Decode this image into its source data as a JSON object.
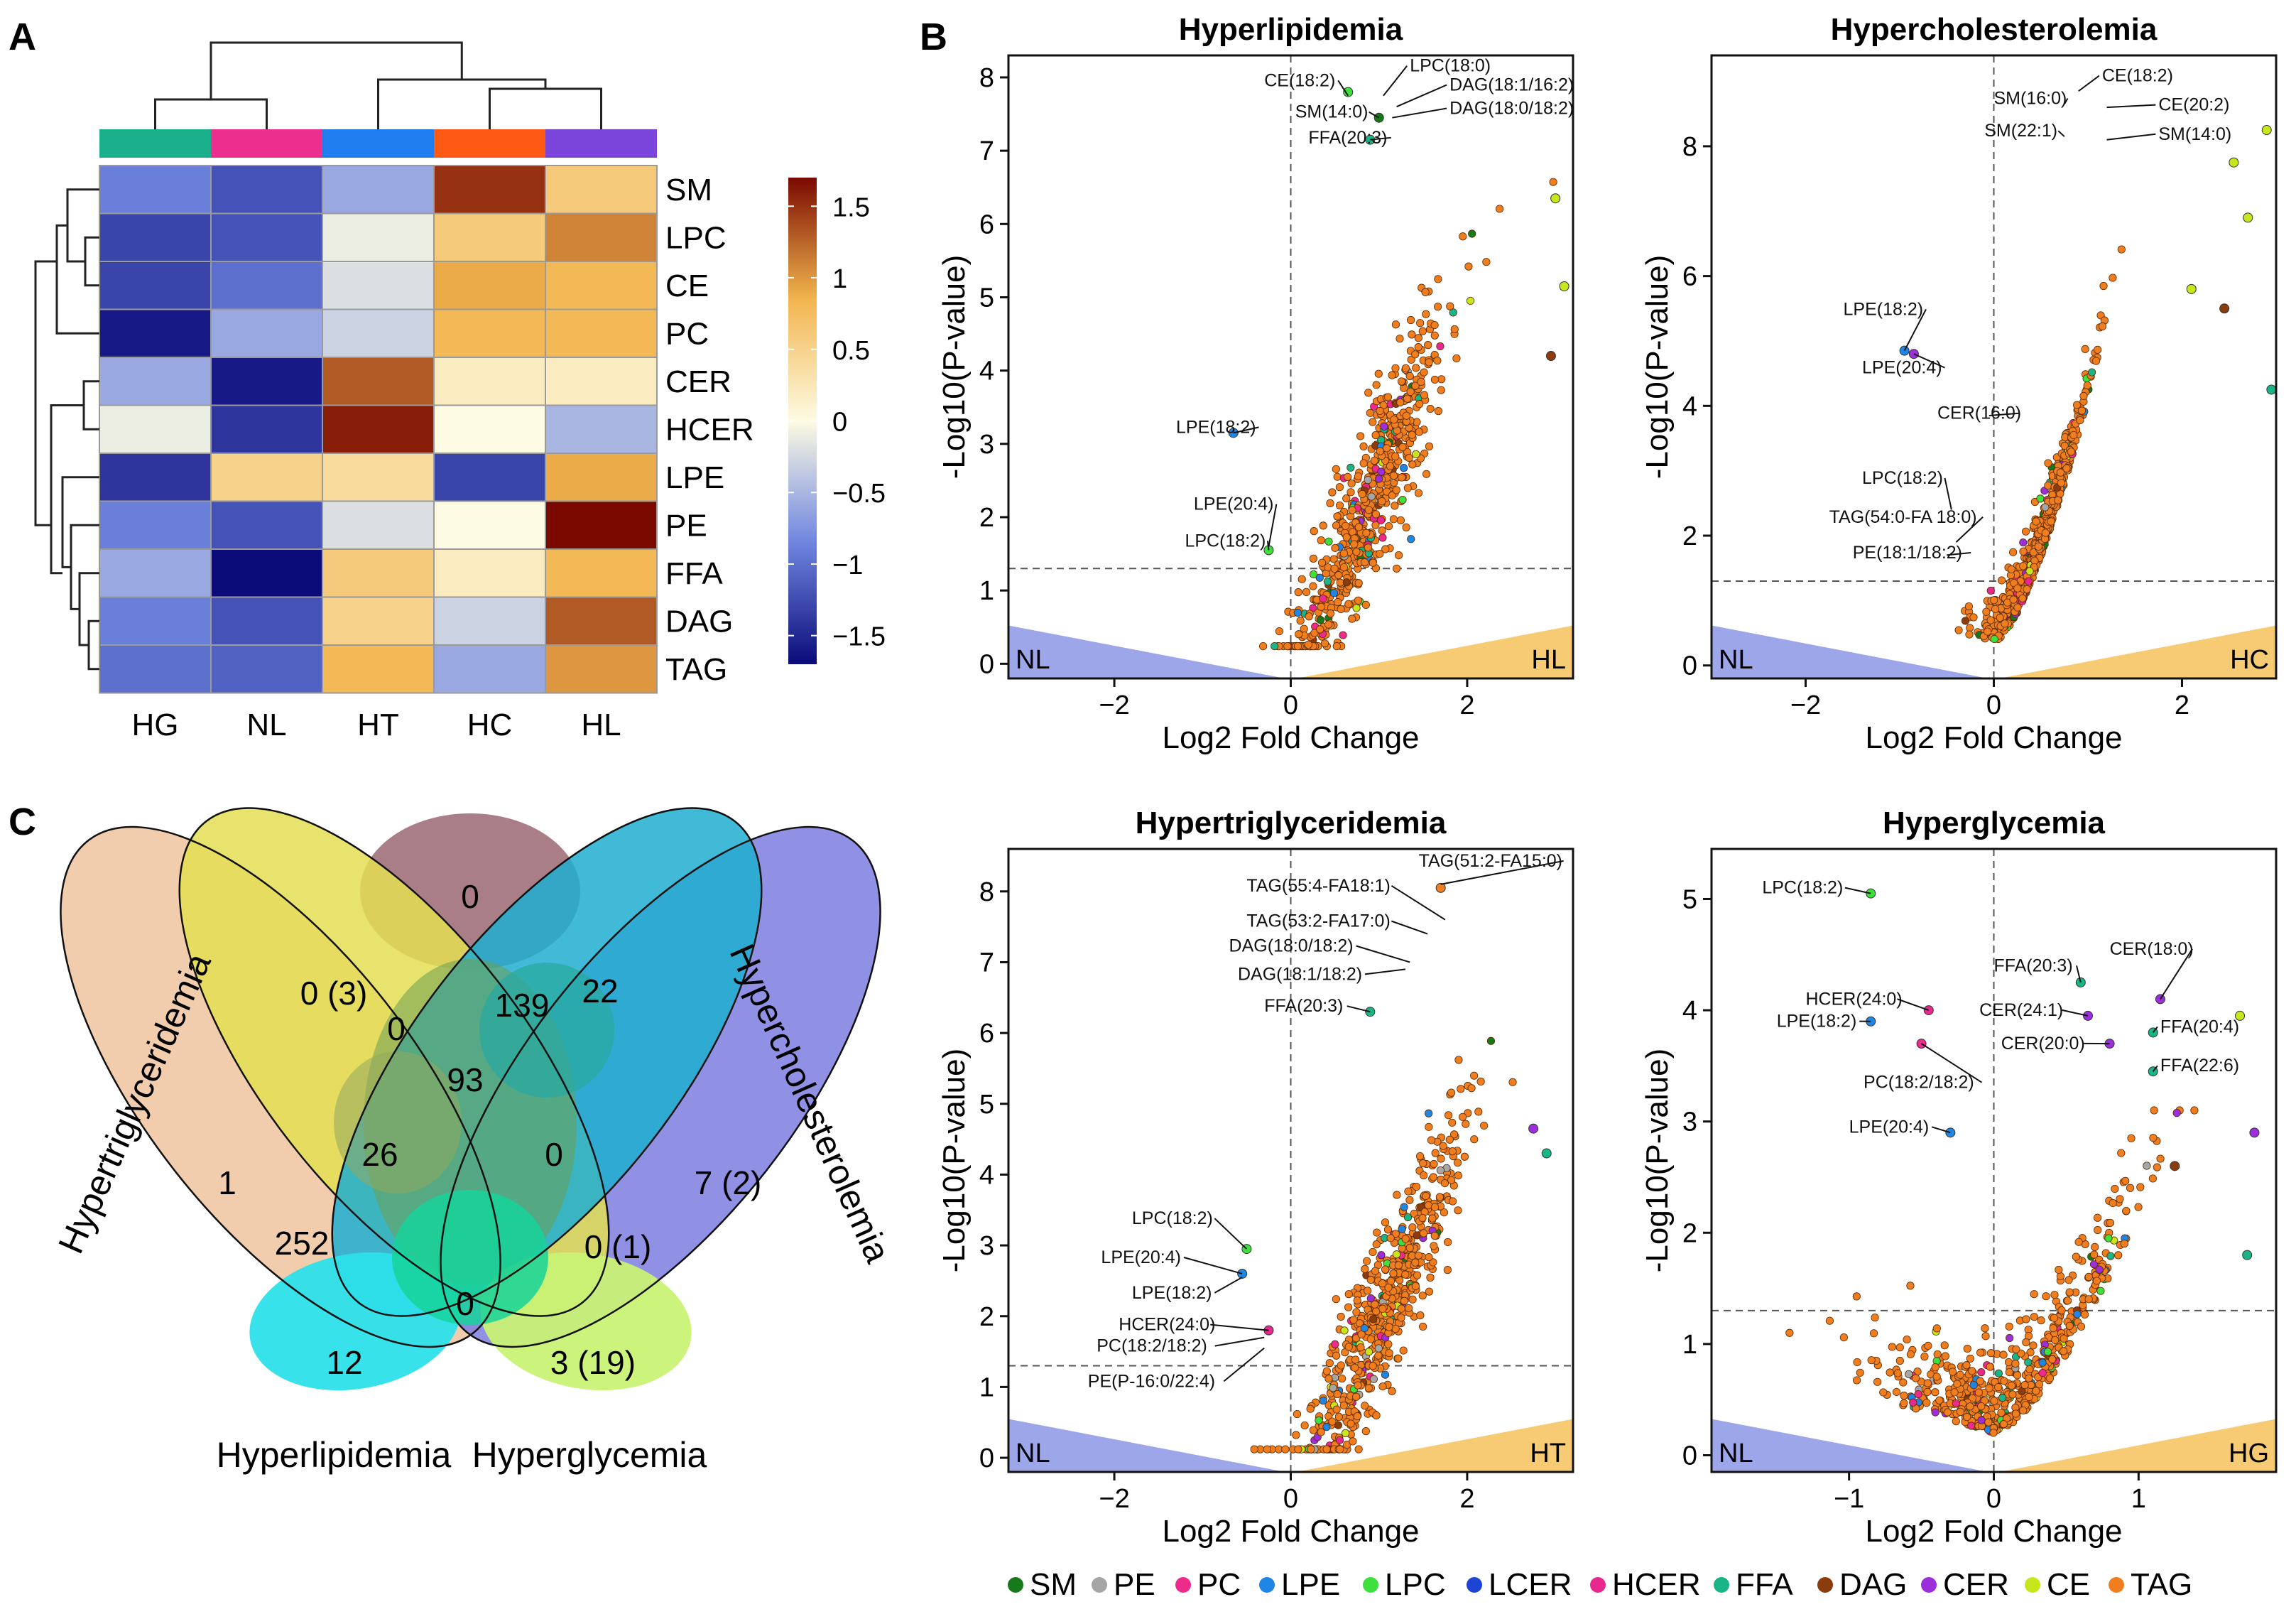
{
  "panel_letters": [
    "A",
    "B",
    "C"
  ],
  "chart_data": [
    {
      "type": "heatmap",
      "id": "heatmap",
      "columns": [
        "HG",
        "NL",
        "HT",
        "HC",
        "HL"
      ],
      "rows": [
        "SM",
        "LPC",
        "CE",
        "PC",
        "CER",
        "HCER",
        "LPE",
        "PE",
        "FFA",
        "DAG",
        "TAG"
      ],
      "values": [
        [
          -0.9,
          -1.2,
          -0.6,
          1.5,
          0.6
        ],
        [
          -1.3,
          -1.2,
          -0.1,
          0.6,
          1.1
        ],
        [
          -1.3,
          -1.0,
          -0.2,
          0.9,
          0.8
        ],
        [
          -1.6,
          -0.6,
          -0.3,
          0.8,
          0.8
        ],
        [
          -0.6,
          -1.6,
          1.3,
          0.2,
          0.2
        ],
        [
          -0.1,
          -1.4,
          1.6,
          0.0,
          -0.5
        ],
        [
          -1.4,
          0.5,
          0.4,
          -1.3,
          0.9
        ],
        [
          -0.9,
          -1.2,
          -0.2,
          0.0,
          1.7
        ],
        [
          -0.6,
          -1.7,
          0.6,
          0.2,
          0.8
        ],
        [
          -0.9,
          -1.2,
          0.5,
          -0.3,
          1.3
        ],
        [
          -1.0,
          -1.1,
          0.8,
          -0.6,
          1.0
        ]
      ],
      "column_group_colors": [
        "#1bb08c",
        "#ec2f8f",
        "#1f7df0",
        "#ff5a14",
        "#7b45dc"
      ],
      "colorbar_ticks": [
        "1.5",
        "1",
        "0.5",
        "0",
        "−0.5",
        "−1",
        "−1.5"
      ],
      "colorbar_values": [
        1.5,
        1,
        0.5,
        0,
        -0.5,
        -1,
        -1.5
      ],
      "color_scale": {
        "low": "#0b0b7a",
        "mid": "#fdfbe3",
        "high": "#7a0a00"
      }
    },
    {
      "type": "scatter",
      "id": "volcano-hl",
      "title": "Hyperlipidemia",
      "xlabel": "Log2 Fold Change",
      "ylabel": "-Log10(P-value)",
      "xlim": [
        -3.2,
        3.2
      ],
      "ylim": [
        -0.2,
        8.3
      ],
      "xticks": [
        -2,
        0,
        2
      ],
      "yticks": [
        0,
        1,
        2,
        3,
        4,
        5,
        6,
        7,
        8
      ],
      "threshold_y": 1.3,
      "left_group": "NL",
      "right_group": "HL",
      "cloud": {
        "x_center": 0.9,
        "x_spread": 0.45,
        "slope": 3.5,
        "intercept": 0.4,
        "y_max": 8.0,
        "n": 620,
        "seed": 11
      },
      "extra_points": [
        {
          "x": -0.65,
          "y": 3.15,
          "cls": "LPE"
        },
        {
          "x": -0.25,
          "y": 1.55,
          "cls": "LPC"
        },
        {
          "x": 3.0,
          "y": 6.35,
          "cls": "CE"
        },
        {
          "x": 3.1,
          "y": 5.15,
          "cls": "CE"
        },
        {
          "x": 2.95,
          "y": 4.2,
          "cls": "DAG"
        },
        {
          "x": 0.65,
          "y": 7.8,
          "cls": "LPC"
        },
        {
          "x": 1.0,
          "y": 7.45,
          "cls": "SM"
        },
        {
          "x": 0.9,
          "y": 7.15,
          "cls": "FFA"
        }
      ],
      "annotations": [
        {
          "text": "CE(18:2)",
          "x": -0.3,
          "y": 7.88,
          "px": 0.65,
          "py": 7.75
        },
        {
          "text": "LPC(18:0)",
          "x": 1.35,
          "y": 8.08,
          "px": 1.05,
          "py": 7.75
        },
        {
          "text": "DAG(18:1/16:2)",
          "x": 1.8,
          "y": 7.82,
          "px": 1.2,
          "py": 7.6
        },
        {
          "text": "SM(14:0)",
          "x": 0.05,
          "y": 7.45,
          "px": 1.0,
          "py": 7.45
        },
        {
          "text": "DAG(18:0/18:2)",
          "x": 1.8,
          "y": 7.5,
          "px": 1.15,
          "py": 7.45
        },
        {
          "text": "FFA(20:3)",
          "x": 0.2,
          "y": 7.1,
          "px": 0.9,
          "py": 7.15
        },
        {
          "text": "LPE(18:2)",
          "x": -1.3,
          "y": 3.15,
          "px": -0.65,
          "py": 3.15
        },
        {
          "text": "LPE(20:4)",
          "x": -1.1,
          "y": 2.1,
          "px": -0.25,
          "py": 1.6
        },
        {
          "text": "LPC(18:2)",
          "x": -1.2,
          "y": 1.6,
          "px": -0.25,
          "py": 1.55
        }
      ]
    },
    {
      "type": "scatter",
      "id": "volcano-hc",
      "title": "Hypercholesterolemia",
      "xlabel": "Log2 Fold Change",
      "ylabel": "-Log10(P-value)",
      "xlim": [
        -3.0,
        3.0
      ],
      "ylim": [
        -0.2,
        9.4
      ],
      "xticks": [
        -2,
        0,
        2
      ],
      "yticks": [
        0,
        2,
        4,
        6,
        8
      ],
      "threshold_y": 1.3,
      "left_group": "NL",
      "right_group": "HC",
      "cloud": {
        "x_center": 0.45,
        "x_spread": 0.28,
        "slope": 4.2,
        "intercept": 0.35,
        "y_max": 9.0,
        "n": 620,
        "seed": 23,
        "curve": true
      },
      "extra_points": [
        {
          "x": -0.95,
          "y": 4.85,
          "cls": "LPE"
        },
        {
          "x": -0.85,
          "y": 4.8,
          "cls": "CER"
        },
        {
          "x": 2.9,
          "y": 8.25,
          "cls": "CE"
        },
        {
          "x": 2.55,
          "y": 7.75,
          "cls": "CE"
        },
        {
          "x": 2.7,
          "y": 6.9,
          "cls": "CE"
        },
        {
          "x": 2.45,
          "y": 5.5,
          "cls": "DAG"
        },
        {
          "x": 2.95,
          "y": 4.25,
          "cls": "FFA"
        },
        {
          "x": 2.1,
          "y": 5.8,
          "cls": "CE"
        }
      ],
      "annotations": [
        {
          "text": "CE(18:2)",
          "x": 1.15,
          "y": 9.0,
          "px": 0.9,
          "py": 8.85
        },
        {
          "text": "SM(16:0)",
          "x": 0.0,
          "y": 8.65,
          "px": 0.75,
          "py": 8.65
        },
        {
          "text": "CE(20:2)",
          "x": 1.75,
          "y": 8.55,
          "px": 1.2,
          "py": 8.6
        },
        {
          "text": "SM(22:1)",
          "x": -0.1,
          "y": 8.15,
          "px": 0.75,
          "py": 8.15
        },
        {
          "text": "SM(14:0)",
          "x": 1.75,
          "y": 8.1,
          "px": 1.2,
          "py": 8.1
        },
        {
          "text": "LPE(18:2)",
          "x": -1.6,
          "y": 5.4,
          "px": -0.95,
          "py": 4.85
        },
        {
          "text": "LPE(20:4)",
          "x": -1.4,
          "y": 4.5,
          "px": -0.85,
          "py": 4.8
        },
        {
          "text": "CER(16:0)",
          "x": -0.6,
          "y": 3.8,
          "px": -0.05,
          "py": 3.85
        },
        {
          "text": "LPC(18:2)",
          "x": -1.4,
          "y": 2.8,
          "px": -0.45,
          "py": 2.4
        },
        {
          "text": "TAG(54:0-FA 18:0)",
          "x": -1.75,
          "y": 2.2,
          "px": -0.4,
          "py": 1.9
        },
        {
          "text": "PE(18:1/18:2)",
          "x": -1.5,
          "y": 1.65,
          "px": -0.5,
          "py": 1.7
        }
      ]
    },
    {
      "type": "scatter",
      "id": "volcano-ht",
      "title": "Hypertriglyceridemia",
      "xlabel": "Log2 Fold Change",
      "ylabel": "-Log10(P-value)",
      "xlim": [
        -3.2,
        3.2
      ],
      "ylim": [
        -0.2,
        8.6
      ],
      "xticks": [
        -2,
        0,
        2
      ],
      "yticks": [
        0,
        1,
        2,
        3,
        4,
        5,
        6,
        7,
        8
      ],
      "threshold_y": 1.3,
      "left_group": "NL",
      "right_group": "HT",
      "cloud": {
        "x_center": 1.05,
        "x_spread": 0.45,
        "slope": 3.6,
        "intercept": 0.2,
        "y_max": 8.2,
        "n": 620,
        "seed": 37
      },
      "extra_points": [
        {
          "x": -0.5,
          "y": 2.95,
          "cls": "LPC"
        },
        {
          "x": -0.55,
          "y": 2.6,
          "cls": "LPE"
        },
        {
          "x": -0.25,
          "y": 1.8,
          "cls": "HCER"
        },
        {
          "x": 2.75,
          "y": 4.65,
          "cls": "CER"
        },
        {
          "x": 2.9,
          "y": 4.3,
          "cls": "FFA"
        },
        {
          "x": 1.7,
          "y": 8.05,
          "cls": "TAG"
        },
        {
          "x": 0.9,
          "y": 6.3,
          "cls": "FFA"
        }
      ],
      "annotations": [
        {
          "text": "TAG(51:2-FA15:0)",
          "x": 1.45,
          "y": 8.35,
          "px": 1.7,
          "py": 8.1
        },
        {
          "text": "TAG(55:4-FA18:1)",
          "x": -0.5,
          "y": 8.0,
          "px": 1.75,
          "py": 7.6
        },
        {
          "text": "TAG(53:2-FA17:0)",
          "x": -0.5,
          "y": 7.5,
          "px": 1.55,
          "py": 7.4
        },
        {
          "text": "DAG(18:0/18:2)",
          "x": -0.7,
          "y": 7.15,
          "px": 1.35,
          "py": 7.0
        },
        {
          "text": "DAG(18:1/18:2)",
          "x": -0.6,
          "y": 6.75,
          "px": 1.3,
          "py": 6.9
        },
        {
          "text": "FFA(20:3)",
          "x": -0.3,
          "y": 6.3,
          "px": 0.9,
          "py": 6.3
        },
        {
          "text": "LPC(18:2)",
          "x": -1.8,
          "y": 3.3,
          "px": -0.5,
          "py": 2.95
        },
        {
          "text": "LPE(20:4)",
          "x": -2.15,
          "y": 2.75,
          "px": -0.55,
          "py": 2.6
        },
        {
          "text": "LPE(18:2)",
          "x": -1.8,
          "y": 2.25,
          "px": -0.55,
          "py": 2.55
        },
        {
          "text": "HCER(24:0)",
          "x": -1.95,
          "y": 1.8,
          "px": -0.25,
          "py": 1.8
        },
        {
          "text": "PC(18:2/18:2)",
          "x": -2.2,
          "y": 1.5,
          "px": -0.3,
          "py": 1.7
        },
        {
          "text": "PE(P-16:0/22:4)",
          "x": -2.3,
          "y": 1.0,
          "px": -0.3,
          "py": 1.55
        }
      ]
    },
    {
      "type": "scatter",
      "id": "volcano-hg",
      "title": "Hyperglycemia",
      "xlabel": "Log2 Fold Change",
      "ylabel": "-Log10(P-value)",
      "xlim": [
        -1.95,
        1.95
      ],
      "ylim": [
        -0.15,
        5.45
      ],
      "xticks": [
        -1,
        0,
        1
      ],
      "yticks": [
        0,
        1,
        2,
        3,
        4,
        5
      ],
      "threshold_y": 1.3,
      "left_group": "NL",
      "right_group": "HG",
      "cloud": {
        "x_center": 0.15,
        "x_spread": 0.45,
        "slope": 2.2,
        "intercept": 0.2,
        "y_max": 3.1,
        "n": 560,
        "seed": 53,
        "curve": true
      },
      "extra_points": [
        {
          "x": -0.85,
          "y": 5.05,
          "cls": "LPC"
        },
        {
          "x": -0.45,
          "y": 4.0,
          "cls": "HCER"
        },
        {
          "x": -0.85,
          "y": 3.9,
          "cls": "LPE"
        },
        {
          "x": -0.5,
          "y": 3.7,
          "cls": "PC"
        },
        {
          "x": -0.3,
          "y": 2.9,
          "cls": "LPE"
        },
        {
          "x": 0.6,
          "y": 4.25,
          "cls": "FFA"
        },
        {
          "x": 0.65,
          "y": 3.95,
          "cls": "CER"
        },
        {
          "x": 0.8,
          "y": 3.7,
          "cls": "CER"
        },
        {
          "x": 1.15,
          "y": 4.1,
          "cls": "CER"
        },
        {
          "x": 1.1,
          "y": 3.8,
          "cls": "FFA"
        },
        {
          "x": 1.1,
          "y": 3.45,
          "cls": "FFA"
        },
        {
          "x": 1.7,
          "y": 3.95,
          "cls": "CE"
        },
        {
          "x": 1.8,
          "y": 2.9,
          "cls": "CER"
        },
        {
          "x": 1.75,
          "y": 1.8,
          "cls": "FFA"
        },
        {
          "x": 1.25,
          "y": 2.6,
          "cls": "DAG"
        }
      ],
      "annotations": [
        {
          "text": "LPC(18:2)",
          "x": -1.6,
          "y": 5.05,
          "px": -0.85,
          "py": 5.05
        },
        {
          "text": "FFA(20:3)",
          "x": 0.0,
          "y": 4.35,
          "px": 0.6,
          "py": 4.25
        },
        {
          "text": "CER(18:0)",
          "x": 0.8,
          "y": 4.5,
          "px": 1.15,
          "py": 4.1
        },
        {
          "text": "HCER(24:0)",
          "x": -1.3,
          "y": 4.05,
          "px": -0.45,
          "py": 4.0
        },
        {
          "text": "CER(24:1)",
          "x": -0.1,
          "y": 3.95,
          "px": 0.65,
          "py": 3.95
        },
        {
          "text": "FFA(20:4)",
          "x": 1.15,
          "y": 3.8,
          "px": 1.1,
          "py": 3.8
        },
        {
          "text": "LPE(18:2)",
          "x": -1.5,
          "y": 3.85,
          "px": -0.85,
          "py": 3.9
        },
        {
          "text": "CER(20:0)",
          "x": 0.05,
          "y": 3.65,
          "px": 0.8,
          "py": 3.7
        },
        {
          "text": "FFA(22:6)",
          "x": 1.15,
          "y": 3.45,
          "px": 1.1,
          "py": 3.45
        },
        {
          "text": "PC(18:2/18:2)",
          "x": -0.9,
          "y": 3.3,
          "px": -0.5,
          "py": 3.7
        },
        {
          "text": "LPE(20:4)",
          "x": -1.0,
          "y": 2.9,
          "px": -0.3,
          "py": 2.9
        }
      ]
    },
    {
      "type": "venn",
      "id": "venn",
      "sets": [
        {
          "name": "Hypertriglyceridemia",
          "color": "#efc4a0"
        },
        {
          "name": "Hyperlipidemia",
          "color": "#28dbe6"
        },
        {
          "name": "Hyperglycemia",
          "color": "#cdf070"
        },
        {
          "name": "Hypercholesterolemia",
          "color": "#7c7ee0"
        }
      ],
      "region_labels": [
        "0",
        "0 (3)",
        "0",
        "139",
        "22",
        "93",
        "1",
        "26",
        "0",
        "7 (2)",
        "252",
        "0 (1)",
        "0",
        "12",
        "3 (19)"
      ]
    }
  ],
  "legend": {
    "items": [
      {
        "label": "SM",
        "color": "#167a1a"
      },
      {
        "label": "PE",
        "color": "#a6a6a6"
      },
      {
        "label": "PC",
        "color": "#ec2b8c"
      },
      {
        "label": "LPE",
        "color": "#1f86e6"
      },
      {
        "label": "LPC",
        "color": "#3de03d"
      },
      {
        "label": "LCER",
        "color": "#1d44d4"
      },
      {
        "label": "HCER",
        "color": "#e8288f"
      },
      {
        "label": "FFA",
        "color": "#19b487"
      },
      {
        "label": "DAG",
        "color": "#8a3c0c"
      },
      {
        "label": "CER",
        "color": "#9c2edb"
      },
      {
        "label": "CE",
        "color": "#c8e61c"
      },
      {
        "label": "TAG",
        "color": "#f07e1e"
      }
    ]
  }
}
